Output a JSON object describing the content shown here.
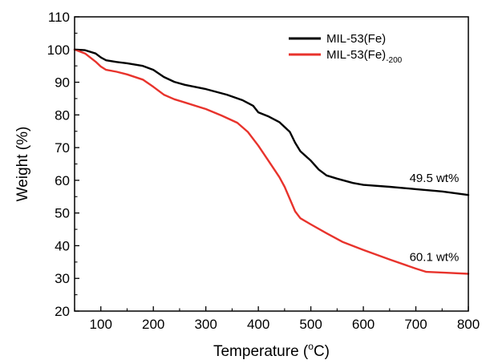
{
  "chart_data": {
    "type": "line",
    "title": "",
    "xlabel": "Temperature (°C)",
    "xlabel_main": "Temperature (",
    "xlabel_degree": "o",
    "xlabel_unit": "C)",
    "ylabel": "Weight (%)",
    "xlim": [
      50,
      800
    ],
    "ylim": [
      20,
      110
    ],
    "xticks": [
      100,
      200,
      300,
      400,
      500,
      600,
      700,
      800
    ],
    "yticks": [
      20,
      30,
      40,
      50,
      60,
      70,
      80,
      90,
      100,
      110
    ],
    "grid": false,
    "legend_position": "top-right",
    "series": [
      {
        "name": "MIL-53(Fe)",
        "name_main": "MIL-53(Fe)",
        "name_sub": "",
        "color": "#000000",
        "points": [
          [
            50,
            100
          ],
          [
            70,
            99.8
          ],
          [
            90,
            98.8
          ],
          [
            100,
            97.6
          ],
          [
            110,
            96.7
          ],
          [
            130,
            96.2
          ],
          [
            150,
            95.8
          ],
          [
            180,
            95.0
          ],
          [
            200,
            93.8
          ],
          [
            220,
            91.6
          ],
          [
            240,
            90.1
          ],
          [
            260,
            89.2
          ],
          [
            300,
            87.9
          ],
          [
            340,
            86.2
          ],
          [
            370,
            84.5
          ],
          [
            390,
            82.8
          ],
          [
            400,
            80.8
          ],
          [
            420,
            79.5
          ],
          [
            440,
            77.8
          ],
          [
            460,
            74.8
          ],
          [
            470,
            71.5
          ],
          [
            480,
            68.9
          ],
          [
            500,
            66.0
          ],
          [
            515,
            63.3
          ],
          [
            530,
            61.5
          ],
          [
            550,
            60.5
          ],
          [
            580,
            59.2
          ],
          [
            600,
            58.6
          ],
          [
            650,
            58.0
          ],
          [
            700,
            57.3
          ],
          [
            750,
            56.6
          ],
          [
            800,
            55.5
          ]
        ]
      },
      {
        "name": "MIL-53(Fe)-200",
        "name_main": "MIL-53(Fe)",
        "name_sub": "-200",
        "color": "#e8332c",
        "points": [
          [
            50,
            100
          ],
          [
            70,
            98.8
          ],
          [
            90,
            96.3
          ],
          [
            100,
            94.8
          ],
          [
            110,
            93.8
          ],
          [
            130,
            93.2
          ],
          [
            150,
            92.4
          ],
          [
            180,
            90.8
          ],
          [
            200,
            88.6
          ],
          [
            220,
            86.2
          ],
          [
            240,
            84.8
          ],
          [
            260,
            83.8
          ],
          [
            300,
            81.8
          ],
          [
            330,
            79.8
          ],
          [
            360,
            77.6
          ],
          [
            380,
            74.8
          ],
          [
            400,
            70.6
          ],
          [
            420,
            65.8
          ],
          [
            440,
            61.0
          ],
          [
            450,
            58.0
          ],
          [
            460,
            54.3
          ],
          [
            470,
            50.5
          ],
          [
            480,
            48.4
          ],
          [
            500,
            46.5
          ],
          [
            530,
            43.8
          ],
          [
            560,
            41.2
          ],
          [
            600,
            38.7
          ],
          [
            650,
            35.8
          ],
          [
            700,
            33.0
          ],
          [
            720,
            32.0
          ],
          [
            750,
            31.8
          ],
          [
            800,
            31.4
          ]
        ]
      }
    ],
    "annotations": [
      {
        "text": "49.5 wt%",
        "x": 735,
        "y": 59.5
      },
      {
        "text": "60.1 wt%",
        "x": 735,
        "y": 35.3
      }
    ]
  }
}
